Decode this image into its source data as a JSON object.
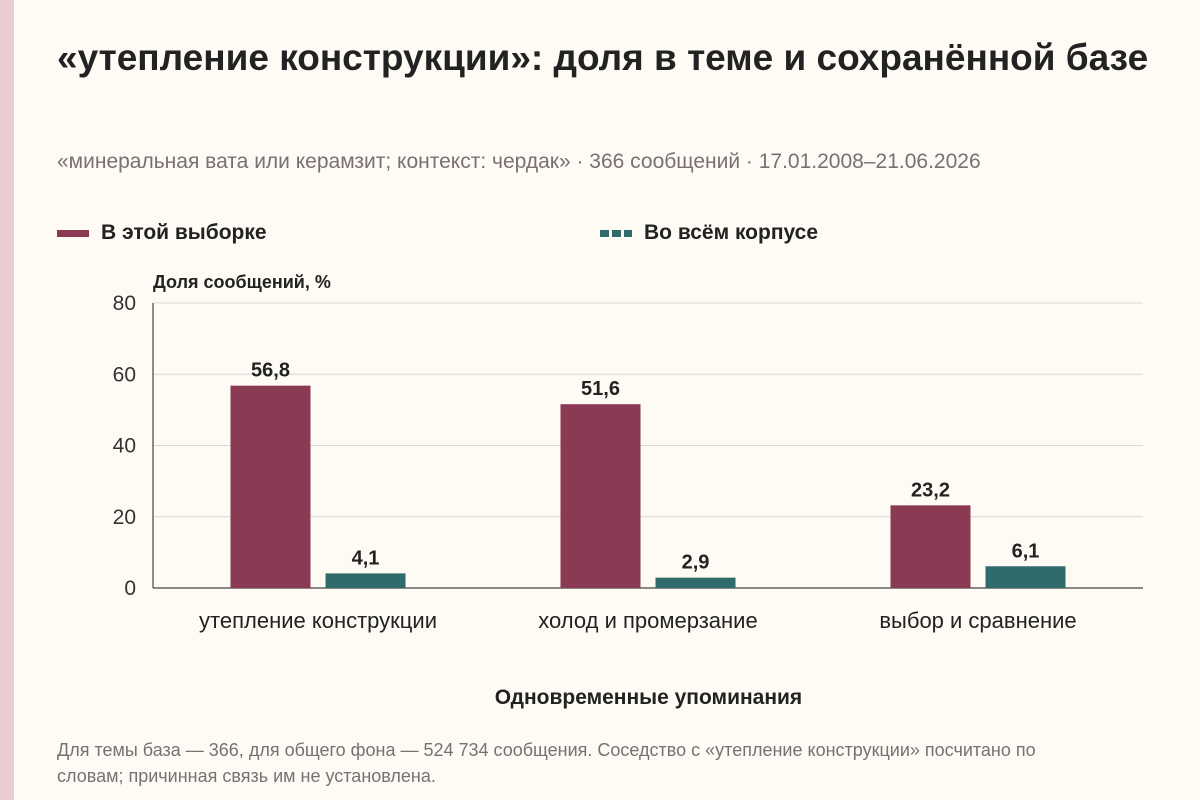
{
  "title": "«утепление конструкции»: доля в теме и сохранённой базе",
  "subtitle": "«минеральная вата или керамзит; контекст: чердак» · 366 сообщений · 17.01.2008–21.06.2026",
  "legend": [
    {
      "label": "В этой выборке",
      "color": "#8a3a52",
      "style": "solid"
    },
    {
      "label": "Во всём корпусе",
      "color": "#2f6b6b",
      "style": "dashed"
    }
  ],
  "footnote": "Для темы база — 366, для общего фона — 524 734 сообщения. Соседство с «утепление конструкции» посчитано по словам; причинная связь им не установлена.",
  "colors": {
    "background": "#fdfbf3",
    "accent_strip": "#ecccd3",
    "series_sample": "#8a3a52",
    "series_corpus": "#2f6b6b",
    "muted_text": "#7a6f75",
    "grid": "#d8d8d8"
  },
  "chart_data": {
    "type": "bar",
    "xlabel": "Одновременные упоминания",
    "ylabel": "Доля сообщений, %",
    "ylim": [
      0,
      80
    ],
    "yticks": [
      0,
      20,
      40,
      60,
      80
    ],
    "grid": true,
    "legend_position": "top-left",
    "categories": [
      "утепление конструкции",
      "холод и промерзание",
      "выбор и сравнение"
    ],
    "series": [
      {
        "name": "В этой выборке",
        "values": [
          56.8,
          51.6,
          23.2
        ],
        "value_labels": [
          "56,8",
          "51,6",
          "23,2"
        ]
      },
      {
        "name": "Во всём корпусе",
        "values": [
          4.1,
          2.9,
          6.1
        ],
        "value_labels": [
          "4,1",
          "2,9",
          "6,1"
        ]
      }
    ]
  }
}
